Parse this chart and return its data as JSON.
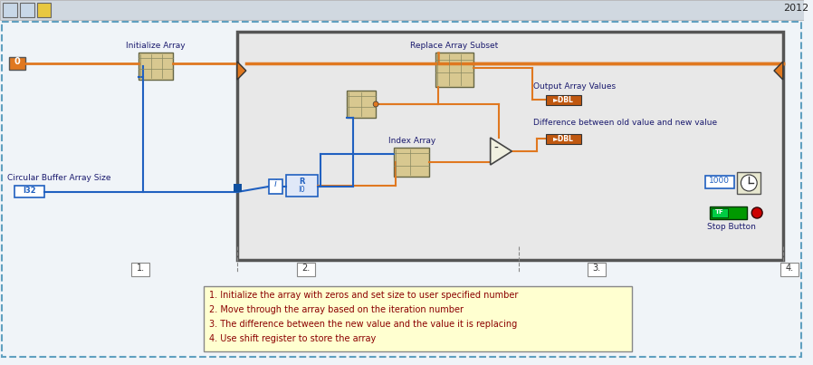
{
  "bg_color": "#f0f4f8",
  "loop_bg": "#e8e8e8",
  "loop_border": "#555555",
  "wire_orange": "#e07820",
  "wire_blue": "#2060c0",
  "text_dark": "#1a1a6e",
  "note_bg": "#ffffd0",
  "note_border": "#888888",
  "year_text": "2012",
  "annotation_lines": [
    "1. Initialize the array with zeros and set size to user specified number",
    "2. Move through the array based on the iteration number",
    "3. The difference between the new value and the value it is replacing",
    "4. Use shift register to store the array"
  ],
  "section_labels": [
    "1.",
    "2.",
    "3.",
    "4."
  ],
  "node_labels": {
    "init_array": "Initialize Array",
    "replace_array": "Replace Array Subset",
    "index_array": "Index Array",
    "output_label": "Output Array Values",
    "diff_label": "Difference between old value and new value",
    "circ_label": "Circular Buffer Array Size",
    "stop_label": "Stop Button"
  }
}
